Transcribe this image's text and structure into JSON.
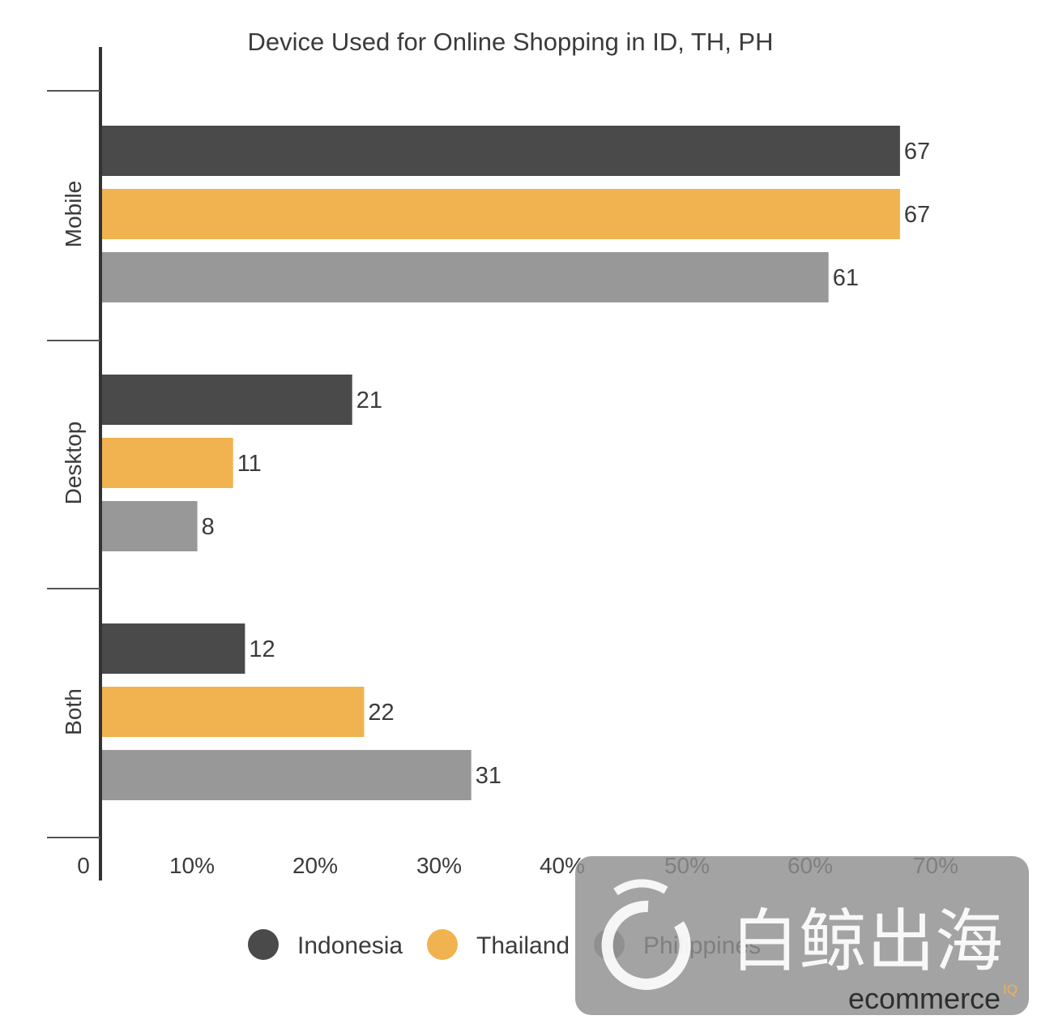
{
  "chart_data": {
    "type": "bar",
    "orientation": "horizontal",
    "title": "Device Used for Online Shopping in ID, TH, PH",
    "categories": [
      "Mobile",
      "Desktop",
      "Both"
    ],
    "series": [
      {
        "name": "Indonesia",
        "color": "#4a4a4a",
        "values": [
          67,
          21,
          12
        ]
      },
      {
        "name": "Thailand",
        "color": "#f0b34f",
        "values": [
          67,
          11,
          22
        ]
      },
      {
        "name": "Philippines",
        "color": "#989898",
        "values": [
          61,
          8,
          31
        ]
      }
    ],
    "x_ticks": [
      "0",
      "10%",
      "20%",
      "30%",
      "40%",
      "50%",
      "60%",
      "70%"
    ],
    "xlim": [
      0,
      70
    ],
    "legend_position": "bottom",
    "grid": false
  },
  "watermark": {
    "chinese_text": "白鲸出海",
    "brand_text": "ecommerce",
    "brand_superscript": "IQ"
  }
}
